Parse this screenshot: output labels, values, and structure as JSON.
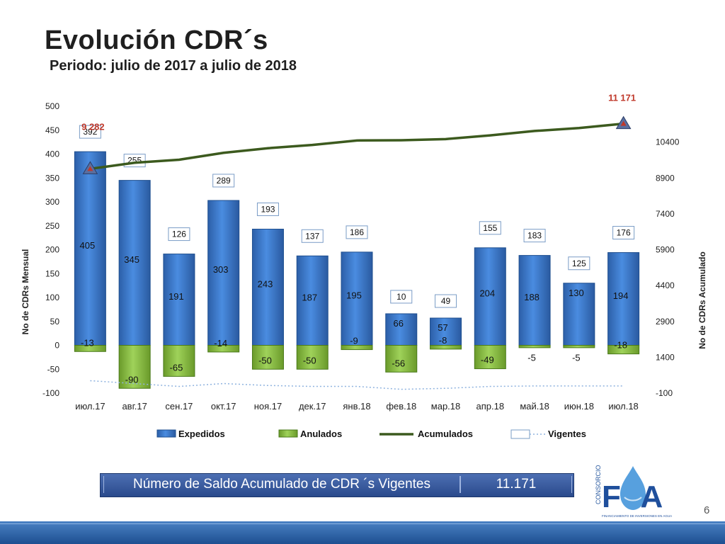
{
  "header": {
    "title": "Evolución CDR´s",
    "subtitle": "Periodo: julio de 2017 a  julio de 2018"
  },
  "chart_data": {
    "type": "bar",
    "categories": [
      "июл.17",
      "авг.17",
      "сен.17",
      "окт.17",
      "ноя.17",
      "дек.17",
      "янв.18",
      "фев.18",
      "мар.18",
      "апр.18",
      "май.18",
      "июн.18",
      "июл.18"
    ],
    "series": [
      {
        "name": "Expedidos",
        "type": "bar",
        "axis": "left",
        "color": "#3a78c9",
        "values": [
          405,
          345,
          191,
          303,
          243,
          187,
          195,
          66,
          57,
          204,
          188,
          130,
          194
        ]
      },
      {
        "name": "Anulados",
        "type": "bar",
        "axis": "left",
        "color": "#8bc34a",
        "values": [
          -13,
          -90,
          -65,
          -14,
          -50,
          -50,
          -9,
          -56,
          -8,
          -49,
          -5,
          -5,
          -18
        ]
      },
      {
        "name": "Acumulados",
        "type": "line",
        "axis": "right",
        "color": "#3c5a1e",
        "values": [
          9282,
          9537,
          9663,
          9952,
          10145,
          10282,
          10468,
          10478,
          10527,
          10682,
          10865,
          10990,
          11171
        ]
      },
      {
        "name": "Vigentes",
        "type": "line",
        "axis": "left",
        "color": "#7fa8d8",
        "values": [
          -74,
          -80,
          -86,
          -80,
          -84,
          -86,
          -86,
          -92,
          -90,
          -86,
          -85,
          -85,
          -85
        ]
      }
    ],
    "box_labels": [
      392,
      255,
      126,
      289,
      193,
      137,
      186,
      10,
      49,
      155,
      183,
      125,
      176
    ],
    "accum_first_label": "9 282",
    "accum_last_label": "11 171",
    "ylabel_left": "No de CDRs Mensual",
    "ylabel_right": "No de CDRs Acumulado",
    "ylim_left": [
      -100,
      500
    ],
    "yticks_left": [
      500,
      450,
      400,
      350,
      300,
      250,
      200,
      150,
      100,
      50,
      0,
      -50,
      -100
    ],
    "ylim_right": [
      -100,
      11900
    ],
    "yticks_right": [
      10400,
      8900,
      7400,
      5900,
      4400,
      2900,
      1400,
      -100
    ],
    "legend_position": "bottom"
  },
  "summary": {
    "label": "Número de Saldo Acumulado de CDR ´s Vigentes",
    "value": "11.171"
  },
  "logo": {
    "text": "FA",
    "side_text": "CONSORCIO",
    "tagline": "FINANCIAMIENTO DE INVERSIONES EN AGUA"
  },
  "page_number": "6",
  "colors": {
    "bar_blue": "#3a78c9",
    "bar_green": "#8bc34a",
    "line_dark_green": "#3c5a1e",
    "accent_red": "#c0392b"
  }
}
